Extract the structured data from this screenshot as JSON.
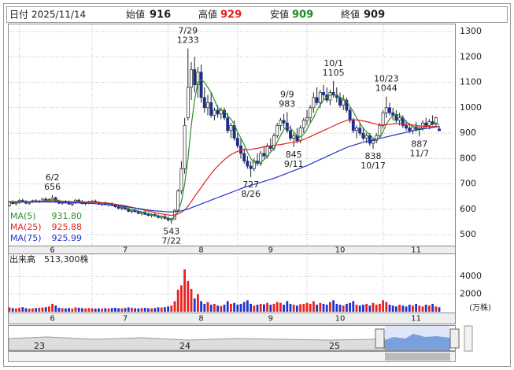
{
  "header": {
    "date_label": "日付",
    "date": "2025/11/14",
    "open_label": "始値",
    "open": 916,
    "high_label": "高値",
    "high": 929,
    "low_label": "安値",
    "low": 909,
    "close_label": "終値",
    "close": 909
  },
  "chart_data": {
    "type": "candlestick",
    "categories": [
      null,
      null,
      null,
      null,
      null,
      null,
      null,
      null,
      null,
      null,
      null,
      null,
      null,
      "6",
      null,
      null,
      null,
      null,
      null,
      null,
      null,
      null,
      null,
      null,
      null,
      null,
      null,
      null,
      null,
      null,
      null,
      null,
      null,
      null,
      null,
      "7",
      null,
      null,
      null,
      null,
      null,
      null,
      null,
      null,
      null,
      null,
      null,
      null,
      null,
      null,
      null,
      null,
      null,
      null,
      null,
      null,
      null,
      null,
      "8",
      null,
      null,
      null,
      null,
      null,
      null,
      null,
      null,
      null,
      null,
      null,
      null,
      null,
      null,
      null,
      null,
      null,
      null,
      null,
      null,
      "9",
      null,
      null,
      null,
      null,
      null,
      null,
      null,
      null,
      null,
      null,
      null,
      null,
      null,
      null,
      null,
      null,
      null,
      null,
      null,
      null,
      "10",
      null,
      null,
      null,
      null,
      null,
      null,
      null,
      null,
      null,
      null,
      null,
      null,
      null,
      null,
      null,
      null,
      null,
      null,
      null,
      null,
      null,
      null,
      "11",
      null,
      null,
      null,
      null,
      null,
      null,
      null
    ],
    "open": [
      615,
      628,
      622,
      626,
      635,
      630,
      624,
      628,
      634,
      630,
      632,
      640,
      636,
      638,
      645,
      630,
      624,
      628,
      626,
      620,
      625,
      636,
      630,
      622,
      626,
      628,
      632,
      626,
      620,
      624,
      618,
      622,
      615,
      610,
      604,
      608,
      600,
      592,
      596,
      590,
      584,
      588,
      580,
      576,
      580,
      574,
      568,
      572,
      564,
      558,
      562,
      596,
      672,
      760,
      960,
      1080,
      1150,
      1090,
      1140,
      1040,
      1000,
      1020,
      970,
      990,
      975,
      990,
      960,
      910,
      930,
      880,
      850,
      820,
      790,
      770,
      760,
      790,
      780,
      820,
      810,
      850,
      840,
      890,
      930,
      950,
      940,
      910,
      880,
      890,
      870,
      920,
      950,
      960,
      1000,
      1040,
      1020,
      1060,
      1050,
      1030,
      1060,
      1050,
      1040,
      1010,
      1030,
      990,
      950,
      910,
      920,
      900,
      880,
      890,
      860,
      870,
      890,
      930,
      980,
      1000,
      980,
      970,
      950,
      960,
      930,
      920,
      910,
      925,
      915,
      920,
      940,
      930,
      945,
      935,
      916
    ],
    "high": [
      632,
      635,
      630,
      640,
      642,
      636,
      632,
      638,
      640,
      637,
      645,
      648,
      644,
      656,
      650,
      638,
      632,
      636,
      634,
      630,
      640,
      642,
      636,
      630,
      634,
      636,
      638,
      632,
      628,
      630,
      626,
      628,
      622,
      618,
      612,
      614,
      606,
      600,
      604,
      598,
      592,
      594,
      588,
      584,
      586,
      580,
      576,
      578,
      572,
      566,
      600,
      680,
      790,
      960,
      1233,
      1180,
      1200,
      1160,
      1170,
      1080,
      1050,
      1060,
      1000,
      1010,
      1000,
      1000,
      980,
      940,
      950,
      900,
      880,
      840,
      810,
      790,
      800,
      820,
      830,
      850,
      860,
      880,
      900,
      940,
      960,
      975,
      983,
      930,
      900,
      920,
      930,
      960,
      990,
      1010,
      1060,
      1080,
      1070,
      1090,
      1080,
      1070,
      1105,
      1080,
      1060,
      1050,
      1040,
      1000,
      960,
      930,
      940,
      920,
      900,
      900,
      880,
      900,
      940,
      990,
      1044,
      1020,
      1000,
      990,
      980,
      970,
      950,
      940,
      930,
      945,
      930,
      950,
      960,
      955,
      970,
      965,
      929
    ],
    "low": [
      610,
      620,
      615,
      622,
      628,
      620,
      618,
      625,
      626,
      624,
      628,
      632,
      630,
      634,
      628,
      620,
      618,
      622,
      618,
      612,
      622,
      628,
      620,
      616,
      620,
      622,
      624,
      618,
      612,
      615,
      610,
      612,
      606,
      600,
      596,
      598,
      588,
      584,
      588,
      580,
      576,
      578,
      572,
      568,
      570,
      564,
      560,
      560,
      552,
      543,
      558,
      590,
      660,
      740,
      950,
      1030,
      1060,
      1040,
      1020,
      980,
      970,
      960,
      950,
      960,
      955,
      950,
      900,
      880,
      870,
      840,
      800,
      780,
      760,
      727,
      750,
      770,
      770,
      800,
      800,
      830,
      830,
      880,
      910,
      920,
      900,
      870,
      845,
      860,
      860,
      900,
      930,
      940,
      980,
      1010,
      1000,
      1030,
      1020,
      1010,
      1040,
      1020,
      1000,
      990,
      980,
      940,
      900,
      880,
      890,
      870,
      860,
      850,
      838,
      860,
      880,
      920,
      960,
      970,
      950,
      940,
      930,
      920,
      910,
      900,
      895,
      905,
      887,
      910,
      920,
      915,
      930,
      925,
      909
    ],
    "close": [
      628,
      622,
      626,
      635,
      630,
      624,
      628,
      634,
      630,
      632,
      640,
      636,
      638,
      645,
      630,
      624,
      628,
      626,
      620,
      625,
      636,
      630,
      622,
      626,
      628,
      632,
      626,
      620,
      624,
      618,
      622,
      615,
      610,
      604,
      608,
      600,
      592,
      596,
      590,
      584,
      588,
      580,
      576,
      580,
      574,
      568,
      572,
      564,
      558,
      562,
      596,
      672,
      760,
      930,
      1080,
      1150,
      1090,
      1140,
      1040,
      1000,
      1020,
      970,
      990,
      975,
      990,
      960,
      910,
      930,
      880,
      850,
      820,
      790,
      770,
      760,
      790,
      780,
      820,
      810,
      850,
      840,
      890,
      930,
      950,
      940,
      910,
      880,
      890,
      870,
      920,
      950,
      960,
      1000,
      1040,
      1020,
      1060,
      1050,
      1030,
      1060,
      1050,
      1040,
      1010,
      1030,
      990,
      950,
      910,
      920,
      900,
      880,
      890,
      860,
      870,
      890,
      930,
      980,
      1000,
      980,
      970,
      950,
      960,
      930,
      920,
      910,
      925,
      915,
      920,
      940,
      930,
      945,
      935,
      960,
      909
    ],
    "up_color": "#ffffff",
    "down_color": "#1c2f8c",
    "ylim": [
      457,
      1331
    ],
    "yticks": [
      500,
      600,
      700,
      800,
      900,
      1000,
      1100,
      1200,
      1300
    ],
    "grid": true,
    "series": [
      {
        "name": "MA(5)",
        "color": "#2f8f2f",
        "legend_value": {
          "value": 931.8,
          "label": "931.80"
        },
        "values": [
          626,
          627,
          626,
          627,
          628,
          629,
          628,
          629,
          630,
          631,
          633,
          634,
          635,
          637,
          637,
          634,
          631,
          629,
          626,
          624,
          627,
          628,
          628,
          628,
          627,
          628,
          628,
          627,
          626,
          626,
          624,
          620,
          617,
          614,
          612,
          607,
          603,
          600,
          597,
          592,
          590,
          588,
          583,
          580,
          578,
          574,
          572,
          568,
          565,
          563,
          570,
          590,
          630,
          700,
          800,
          930,
          1030,
          1100,
          1110,
          1100,
          1080,
          1060,
          1030,
          1000,
          990,
          985,
          970,
          955,
          935,
          905,
          880,
          855,
          825,
          800,
          785,
          780,
          785,
          795,
          810,
          825,
          840,
          865,
          890,
          915,
          925,
          920,
          905,
          890,
          885,
          895,
          915,
          940,
          960,
          990,
          1010,
          1030,
          1040,
          1050,
          1050,
          1048,
          1040,
          1035,
          1025,
          1005,
          985,
          960,
          940,
          920,
          905,
          895,
          880,
          875,
          880,
          905,
          935,
          955,
          970,
          975,
          970,
          960,
          945,
          935,
          925,
          920,
          918,
          920,
          925,
          930,
          935,
          940,
          931.8
        ]
      },
      {
        "name": "MA(25)",
        "color": "#e8201e",
        "legend_value": {
          "value": 925.88,
          "label": "925.88"
        },
        "values": [
          628,
          628,
          629,
          629,
          629,
          630,
          630,
          630,
          631,
          631,
          631,
          632,
          632,
          632,
          632,
          632,
          632,
          631,
          631,
          630,
          630,
          630,
          630,
          629,
          629,
          628,
          628,
          627,
          626,
          625,
          624,
          622,
          620,
          618,
          616,
          614,
          611,
          608,
          605,
          602,
          599,
          596,
          593,
          590,
          587,
          584,
          582,
          580,
          578,
          576,
          578,
          582,
          588,
          598,
          612,
          630,
          650,
          668,
          686,
          705,
          722,
          740,
          756,
          770,
          783,
          795,
          806,
          815,
          822,
          828,
          832,
          834,
          835,
          836,
          838,
          840,
          843,
          846,
          848,
          850,
          852,
          853,
          855,
          857,
          860,
          862,
          864,
          866,
          870,
          875,
          880,
          886,
          892,
          898,
          904,
          910,
          916,
          922,
          928,
          934,
          940,
          945,
          950,
          952,
          953,
          952,
          950,
          948,
          945,
          942,
          938,
          935,
          932,
          932,
          933,
          935,
          936,
          937,
          937,
          936,
          935,
          934,
          932,
          930,
          928,
          927,
          927,
          926,
          926,
          926,
          925.88
        ]
      },
      {
        "name": "MA(75)",
        "color": "#2233cc",
        "legend_value": {
          "value": 925.99,
          "label": "925.99"
        },
        "values": [
          630,
          630,
          630,
          630,
          630,
          630,
          629,
          629,
          629,
          629,
          629,
          629,
          628,
          628,
          628,
          628,
          627,
          627,
          627,
          626,
          626,
          625,
          625,
          624,
          624,
          623,
          622,
          621,
          620,
          619,
          618,
          617,
          616,
          614,
          613,
          611,
          609,
          607,
          605,
          603,
          601,
          599,
          597,
          595,
          594,
          593,
          592,
          591,
          590,
          590,
          591,
          592,
          594,
          597,
          601,
          606,
          611,
          616,
          621,
          626,
          631,
          636,
          641,
          646,
          651,
          656,
          661,
          666,
          671,
          676,
          681,
          686,
          690,
          694,
          698,
          702,
          706,
          710,
          714,
          718,
          722,
          727,
          732,
          737,
          742,
          747,
          752,
          757,
          762,
          767,
          772,
          778,
          784,
          790,
          796,
          802,
          808,
          814,
          820,
          826,
          832,
          838,
          843,
          848,
          852,
          856,
          860,
          864,
          867,
          870,
          873,
          876,
          879,
          882,
          885,
          888,
          891,
          894,
          897,
          900,
          903,
          906,
          909,
          912,
          914,
          916,
          918,
          920,
          922,
          924,
          925.99
        ]
      }
    ],
    "annotations": [
      {
        "date": "6/2",
        "value": 656
      },
      {
        "date": "7/29",
        "value": 1233
      },
      {
        "date": "7/22",
        "value": 543
      },
      {
        "date": "8/26",
        "value": 727
      },
      {
        "date": "9/9",
        "value": 983
      },
      {
        "date": "9/11",
        "value": 845
      },
      {
        "date": "10/1",
        "value": 1105
      },
      {
        "date": "10/17",
        "value": 838
      },
      {
        "date": "10/23",
        "value": 1044
      },
      {
        "date": "11/7",
        "value": 887
      }
    ],
    "volume": {
      "label": "出来高",
      "current": "513,300株",
      "unit": "(万株)",
      "ylim": [
        0,
        5360
      ],
      "yticks": [
        2000,
        4000
      ],
      "up_color": "#e8201e",
      "down_color": "#2233cc",
      "values": [
        500,
        420,
        380,
        450,
        520,
        400,
        350,
        380,
        420,
        460,
        480,
        520,
        600,
        900,
        700,
        450,
        400,
        380,
        420,
        360,
        500,
        450,
        400,
        380,
        420,
        400,
        360,
        380,
        350,
        400,
        380,
        420,
        450,
        400,
        380,
        420,
        500,
        450,
        400,
        380,
        420,
        450,
        400,
        380,
        420,
        500,
        480,
        520,
        600,
        700,
        1200,
        2500,
        3000,
        4800,
        3500,
        2600,
        1500,
        2000,
        1200,
        900,
        1100,
        800,
        900,
        700,
        650,
        800,
        1200,
        900,
        1000,
        800,
        900,
        1100,
        1300,
        900,
        700,
        800,
        900,
        850,
        1000,
        800,
        900,
        1100,
        1000,
        800,
        1200,
        900,
        800,
        700,
        850,
        900,
        1000,
        900,
        1200,
        800,
        1000,
        900,
        800,
        1100,
        1300,
        900,
        800,
        700,
        900,
        1000,
        1200,
        800,
        700,
        800,
        900,
        700,
        1000,
        800,
        900,
        1300,
        1100,
        800,
        700,
        600,
        800,
        700,
        600,
        800,
        700,
        900,
        700,
        600,
        800,
        700,
        900,
        600,
        513
      ]
    }
  },
  "navigator": {
    "labels": [
      "23",
      "24",
      "25"
    ]
  }
}
